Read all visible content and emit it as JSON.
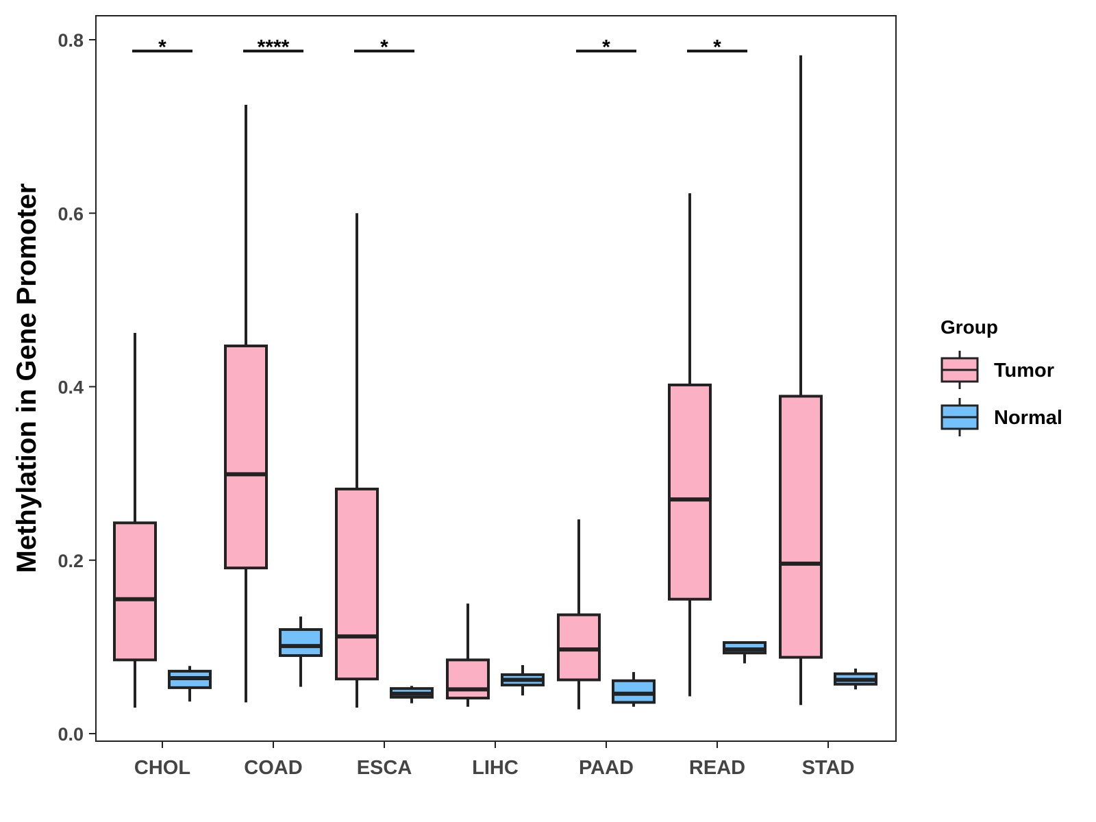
{
  "chart_data": {
    "type": "boxplot",
    "title": "",
    "xlabel": "",
    "ylabel": "Methylation in Gene Promoter",
    "ylim": [
      0,
      0.8
    ],
    "yticks": [
      "0.0",
      "0.2",
      "0.4",
      "0.6",
      "0.8"
    ],
    "categories": [
      "CHOL",
      "COAD",
      "ESCA",
      "LIHC",
      "PAAD",
      "READ",
      "STAD"
    ],
    "legend": {
      "title": "Group",
      "position": "right",
      "entries": [
        "Tumor",
        "Normal"
      ]
    },
    "colors": {
      "Tumor": "#FBB1C3",
      "Normal": "#74C0FB",
      "stroke": "#222222"
    },
    "series": [
      {
        "name": "Tumor",
        "boxes": [
          {
            "whisker_low": 0.03,
            "q1": 0.085,
            "median": 0.155,
            "q3": 0.243,
            "whisker_high": 0.462
          },
          {
            "whisker_low": 0.036,
            "q1": 0.191,
            "median": 0.299,
            "q3": 0.447,
            "whisker_high": 0.725
          },
          {
            "whisker_low": 0.03,
            "q1": 0.063,
            "median": 0.112,
            "q3": 0.282,
            "whisker_high": 0.6
          },
          {
            "whisker_low": 0.031,
            "q1": 0.041,
            "median": 0.051,
            "q3": 0.085,
            "whisker_high": 0.15
          },
          {
            "whisker_low": 0.028,
            "q1": 0.062,
            "median": 0.097,
            "q3": 0.137,
            "whisker_high": 0.247
          },
          {
            "whisker_low": 0.043,
            "q1": 0.155,
            "median": 0.27,
            "q3": 0.402,
            "whisker_high": 0.623
          },
          {
            "whisker_low": 0.033,
            "q1": 0.088,
            "median": 0.196,
            "q3": 0.389,
            "whisker_high": 0.782
          }
        ]
      },
      {
        "name": "Normal",
        "boxes": [
          {
            "whisker_low": 0.037,
            "q1": 0.053,
            "median": 0.064,
            "q3": 0.072,
            "whisker_high": 0.078
          },
          {
            "whisker_low": 0.054,
            "q1": 0.09,
            "median": 0.101,
            "q3": 0.12,
            "whisker_high": 0.135
          },
          {
            "whisker_low": 0.035,
            "q1": 0.042,
            "median": 0.046,
            "q3": 0.052,
            "whisker_high": 0.055
          },
          {
            "whisker_low": 0.044,
            "q1": 0.056,
            "median": 0.062,
            "q3": 0.068,
            "whisker_high": 0.079
          },
          {
            "whisker_low": 0.031,
            "q1": 0.036,
            "median": 0.046,
            "q3": 0.061,
            "whisker_high": 0.071
          },
          {
            "whisker_low": 0.081,
            "q1": 0.093,
            "median": 0.097,
            "q3": 0.105,
            "whisker_high": 0.105
          },
          {
            "whisker_low": 0.051,
            "q1": 0.057,
            "median": 0.062,
            "q3": 0.069,
            "whisker_high": 0.075
          }
        ]
      }
    ],
    "significance": [
      {
        "category": "CHOL",
        "label": "*",
        "y": 0.787
      },
      {
        "category": "COAD",
        "label": "****",
        "y": 0.787
      },
      {
        "category": "ESCA",
        "label": "*",
        "y": 0.787
      },
      {
        "category": "PAAD",
        "label": "*",
        "y": 0.787
      },
      {
        "category": "READ",
        "label": "*",
        "y": 0.787
      }
    ]
  }
}
